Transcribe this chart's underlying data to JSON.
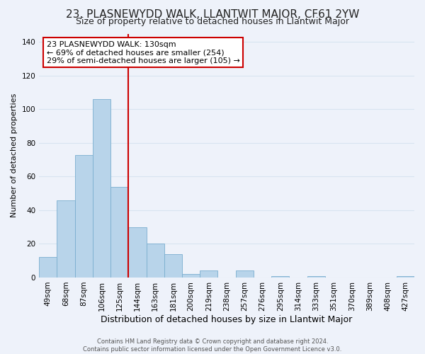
{
  "title": "23, PLASNEWYDD WALK, LLANTWIT MAJOR, CF61 2YW",
  "subtitle": "Size of property relative to detached houses in Llantwit Major",
  "xlabel": "Distribution of detached houses by size in Llantwit Major",
  "ylabel": "Number of detached properties",
  "footer_line1": "Contains HM Land Registry data © Crown copyright and database right 2024.",
  "footer_line2": "Contains public sector information licensed under the Open Government Licence v3.0.",
  "bar_labels": [
    "49sqm",
    "68sqm",
    "87sqm",
    "106sqm",
    "125sqm",
    "144sqm",
    "163sqm",
    "181sqm",
    "200sqm",
    "219sqm",
    "238sqm",
    "257sqm",
    "276sqm",
    "295sqm",
    "314sqm",
    "333sqm",
    "351sqm",
    "370sqm",
    "389sqm",
    "408sqm",
    "427sqm"
  ],
  "bar_values": [
    12,
    46,
    73,
    106,
    54,
    30,
    20,
    14,
    2,
    4,
    0,
    4,
    0,
    1,
    0,
    1,
    0,
    0,
    0,
    0,
    1
  ],
  "bar_color": "#b8d4ea",
  "bar_edge_color": "#7aaecf",
  "vline_x_index": 4,
  "vline_color": "#cc0000",
  "annotation_text": "23 PLASNEWYDD WALK: 130sqm\n← 69% of detached houses are smaller (254)\n29% of semi-detached houses are larger (105) →",
  "annotation_box_color": "#ffffff",
  "annotation_box_edge": "#cc0000",
  "ylim": [
    0,
    145
  ],
  "yticks": [
    0,
    20,
    40,
    60,
    80,
    100,
    120,
    140
  ],
  "background_color": "#eef2fa",
  "grid_color": "#d8e4f0",
  "title_fontsize": 11,
  "subtitle_fontsize": 9,
  "xlabel_fontsize": 9,
  "ylabel_fontsize": 8,
  "tick_fontsize": 7.5,
  "annotation_fontsize": 8,
  "footer_fontsize": 6
}
